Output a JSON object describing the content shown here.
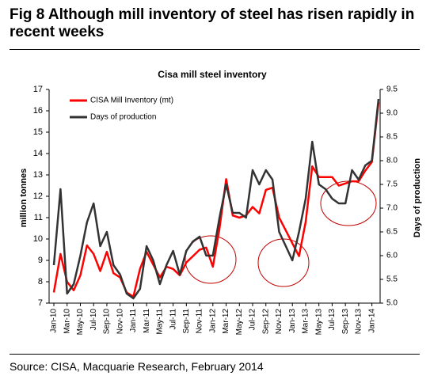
{
  "header": "Fig 8   Although mill inventory of steel has risen rapidly in recent weeks",
  "source": "Source: CISA, Macquarie Research, February 2014",
  "chart_data": {
    "type": "line",
    "title": "Cisa mill steel inventory",
    "ylabel": "million tonnes",
    "y2label": "Days of production",
    "categories": [
      "Jan-10",
      null,
      "Mar-10",
      null,
      "May-10",
      null,
      "Jul-10",
      null,
      "Sep-10",
      null,
      "Nov-10",
      null,
      "Jan-11",
      null,
      "Mar-11",
      null,
      "May-11",
      null,
      "Jul-11",
      null,
      "Sep-11",
      null,
      "Nov-11",
      null,
      "Jan-12",
      null,
      "Mar-12",
      null,
      "May-12",
      null,
      "Jul-12",
      null,
      "Sep-12",
      null,
      "Nov-12",
      null,
      "Jan-13",
      null,
      "Mar-13",
      null,
      "May-13",
      null,
      "Jul-13",
      null,
      "Sep-13",
      null,
      "Nov-13",
      null,
      "Jan-14",
      null
    ],
    "series": [
      {
        "name": "CISA Mill Inventory (mt)",
        "color": "#ff0000",
        "axis": "y",
        "values": [
          7.5,
          9.3,
          8.0,
          7.6,
          8.3,
          9.7,
          9.3,
          8.5,
          9.4,
          8.4,
          8.2,
          7.5,
          7.3,
          8.6,
          9.4,
          8.8,
          8.2,
          8.7,
          8.6,
          8.3,
          8.9,
          9.2,
          9.5,
          9.6,
          8.7,
          10.5,
          12.8,
          11.1,
          11.0,
          11.1,
          11.5,
          11.2,
          12.3,
          12.4,
          11.0,
          10.4,
          9.8,
          9.2,
          10.8,
          13.4,
          12.9,
          12.9,
          12.9,
          12.5,
          12.6,
          12.7,
          12.7,
          13.2,
          13.6,
          16.4
        ]
      },
      {
        "name": "Days of production",
        "color": "#333333",
        "axis": "y2",
        "values": [
          5.8,
          7.4,
          5.2,
          5.4,
          6.0,
          6.7,
          7.1,
          6.2,
          6.5,
          5.8,
          5.6,
          5.2,
          5.1,
          5.3,
          6.2,
          5.9,
          5.4,
          5.8,
          6.1,
          5.6,
          6.1,
          6.3,
          6.4,
          6.0,
          6.0,
          6.8,
          7.5,
          6.9,
          6.9,
          6.8,
          7.8,
          7.5,
          7.8,
          7.6,
          6.5,
          6.2,
          5.9,
          6.5,
          7.2,
          8.4,
          7.5,
          7.4,
          7.2,
          7.1,
          7.1,
          7.8,
          7.6,
          7.9,
          8.0,
          9.3
        ]
      }
    ],
    "ylim": [
      7,
      17
    ],
    "yticks": [
      7,
      8,
      9,
      10,
      11,
      12,
      13,
      14,
      15,
      16,
      17
    ],
    "y2lim": [
      5,
      9.5
    ],
    "y2ticks": [
      {
        "value": 5,
        "label": "5.0"
      },
      5.5,
      {
        "value": 6,
        "label": "6.0"
      },
      6.5,
      {
        "value": 7,
        "label": "7.0"
      },
      7.5,
      {
        "value": 8,
        "label": "8.0"
      },
      8.5,
      {
        "value": 9,
        "label": "9.0"
      },
      9.5
    ],
    "grid": false,
    "legend": "upper left"
  }
}
